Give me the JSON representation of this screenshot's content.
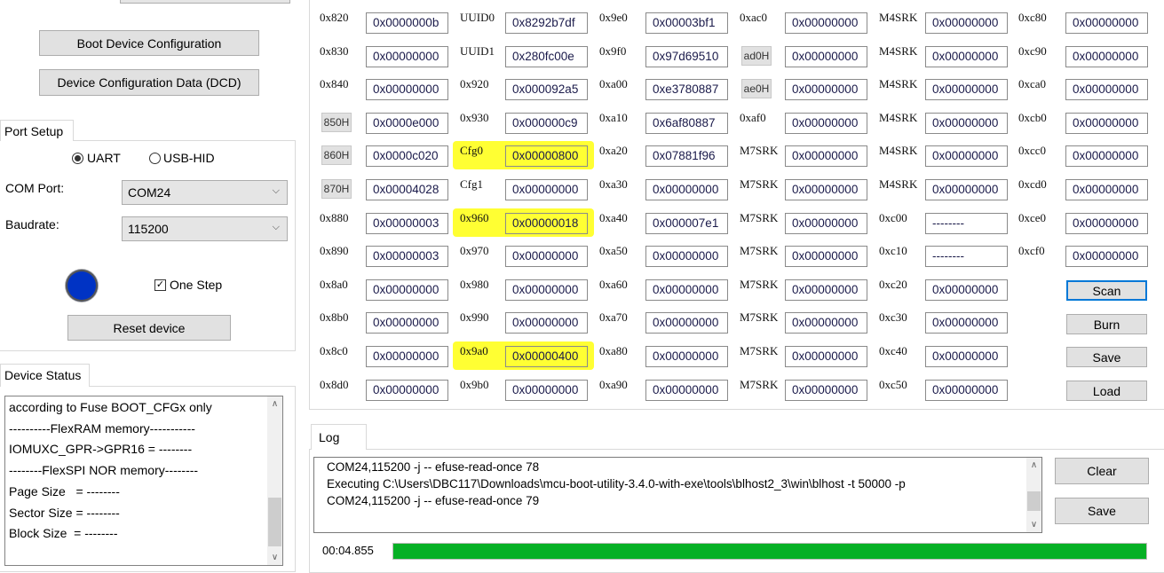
{
  "left": {
    "boot_device_config_button": "Boot Device Configuration",
    "dcd_button": "Device Configuration Data (DCD)",
    "port_setup": {
      "tab_label": "Port Setup",
      "radio_uart": "UART",
      "radio_usb_hid": "USB-HID",
      "selected_interface": "UART",
      "com_port_label": "COM Port:",
      "com_port_value": "COM24",
      "baudrate_label": "Baudrate:",
      "baudrate_value": "115200",
      "status_led_color": "#0033c4",
      "one_step_label": "One Step",
      "one_step_checked": true,
      "reset_button": "Reset device"
    },
    "device_status": {
      "tab_label": "Device Status",
      "lines": [
        "according to Fuse BOOT_CFGx only",
        "----------FlexRAM memory-----------",
        "IOMUXC_GPR->GPR16 = --------",
        "--------FlexSPI NOR memory--------",
        "Page Size   = --------",
        "Sector Size = --------",
        "Block Size  = --------"
      ]
    }
  },
  "fuse_grid": {
    "rows": [
      [
        {
          "l": "0x820",
          "v": "0x0000000b"
        },
        {
          "l": "UUID0",
          "v": "0x8292b7df"
        },
        {
          "l": "0x9e0",
          "v": "0x00003bf1"
        },
        {
          "l": "0xac0",
          "v": "0x00000000"
        },
        {
          "l": "M4SRK",
          "v": "0x00000000"
        },
        {
          "l": "0xc80",
          "v": "0x00000000"
        }
      ],
      [
        {
          "l": "0x830",
          "v": "0x00000000"
        },
        {
          "l": "UUID1",
          "v": "0x280fc00e"
        },
        {
          "l": "0x9f0",
          "v": "0x97d69510"
        },
        {
          "l": "ad0H",
          "v": "0x00000000",
          "b": true
        },
        {
          "l": "M4SRK",
          "v": "0x00000000"
        },
        {
          "l": "0xc90",
          "v": "0x00000000"
        }
      ],
      [
        {
          "l": "0x840",
          "v": "0x00000000"
        },
        {
          "l": "0x920",
          "v": "0x000092a5"
        },
        {
          "l": "0xa00",
          "v": "0xe3780887"
        },
        {
          "l": "ae0H",
          "v": "0x00000000",
          "b": true
        },
        {
          "l": "M4SRK",
          "v": "0x00000000"
        },
        {
          "l": "0xca0",
          "v": "0x00000000"
        }
      ],
      [
        {
          "l": "850H",
          "v": "0x0000e000",
          "b": true
        },
        {
          "l": "0x930",
          "v": "0x000000c9"
        },
        {
          "l": "0xa10",
          "v": "0x6af80887"
        },
        {
          "l": "0xaf0",
          "v": "0x00000000"
        },
        {
          "l": "M4SRK",
          "v": "0x00000000"
        },
        {
          "l": "0xcb0",
          "v": "0x00000000"
        }
      ],
      [
        {
          "l": "860H",
          "v": "0x0000c020",
          "b": true
        },
        {
          "l": "Cfg0",
          "v": "0x00000800",
          "h": true
        },
        {
          "l": "0xa20",
          "v": "0x07881f96"
        },
        {
          "l": "M7SRK",
          "v": "0x00000000"
        },
        {
          "l": "M4SRK",
          "v": "0x00000000"
        },
        {
          "l": "0xcc0",
          "v": "0x00000000"
        }
      ],
      [
        {
          "l": "870H",
          "v": "0x00004028",
          "b": true
        },
        {
          "l": "Cfg1",
          "v": "0x00000000"
        },
        {
          "l": "0xa30",
          "v": "0x00000000"
        },
        {
          "l": "M7SRK",
          "v": "0x00000000"
        },
        {
          "l": "M4SRK",
          "v": "0x00000000"
        },
        {
          "l": "0xcd0",
          "v": "0x00000000"
        }
      ],
      [
        {
          "l": "0x880",
          "v": "0x00000003"
        },
        {
          "l": "0x960",
          "v": "0x00000018",
          "h": true
        },
        {
          "l": "0xa40",
          "v": "0x000007e1"
        },
        {
          "l": "M7SRK",
          "v": "0x00000000"
        },
        {
          "l": "0xc00",
          "v": "--------"
        },
        {
          "l": "0xce0",
          "v": "0x00000000"
        }
      ],
      [
        {
          "l": "0x890",
          "v": "0x00000003"
        },
        {
          "l": "0x970",
          "v": "0x00000000"
        },
        {
          "l": "0xa50",
          "v": "0x00000000"
        },
        {
          "l": "M7SRK",
          "v": "0x00000000"
        },
        {
          "l": "0xc10",
          "v": "--------"
        },
        {
          "l": "0xcf0",
          "v": "0x00000000"
        }
      ],
      [
        {
          "l": "0x8a0",
          "v": "0x00000000"
        },
        {
          "l": "0x980",
          "v": "0x00000000"
        },
        {
          "l": "0xa60",
          "v": "0x00000000"
        },
        {
          "l": "M7SRK",
          "v": "0x00000000"
        },
        {
          "l": "0xc20",
          "v": "0x00000000"
        }
      ],
      [
        {
          "l": "0x8b0",
          "v": "0x00000000"
        },
        {
          "l": "0x990",
          "v": "0x00000000"
        },
        {
          "l": "0xa70",
          "v": "0x00000000"
        },
        {
          "l": "M7SRK",
          "v": "0x00000000"
        },
        {
          "l": "0xc30",
          "v": "0x00000000"
        }
      ],
      [
        {
          "l": "0x8c0",
          "v": "0x00000000"
        },
        {
          "l": "0x9a0",
          "v": "0x00000400",
          "h": true
        },
        {
          "l": "0xa80",
          "v": "0x00000000"
        },
        {
          "l": "M7SRK",
          "v": "0x00000000"
        },
        {
          "l": "0xc40",
          "v": "0x00000000"
        }
      ],
      [
        {
          "l": "0x8d0",
          "v": "0x00000000"
        },
        {
          "l": "0x9b0",
          "v": "0x00000000"
        },
        {
          "l": "0xa90",
          "v": "0x00000000"
        },
        {
          "l": "M7SRK",
          "v": "0x00000000"
        },
        {
          "l": "0xc50",
          "v": "0x00000000"
        }
      ]
    ],
    "highlight_color": "#ffff33",
    "actions": {
      "scan": "Scan",
      "burn": "Burn",
      "save": "Save",
      "load": "Load"
    }
  },
  "log": {
    "tab_label": "Log",
    "lines": [
      "COM24,115200 -j -- efuse-read-once 78",
      "Executing C:\\Users\\DBC117\\Downloads\\mcu-boot-utility-3.4.0-with-exe\\tools\\blhost2_3\\win\\blhost -t 50000 -p",
      "COM24,115200 -j -- efuse-read-once 79"
    ],
    "clear_button": "Clear",
    "save_button": "Save",
    "elapsed": "00:04.855",
    "progress_percent": 100,
    "progress_color": "#06b025"
  }
}
